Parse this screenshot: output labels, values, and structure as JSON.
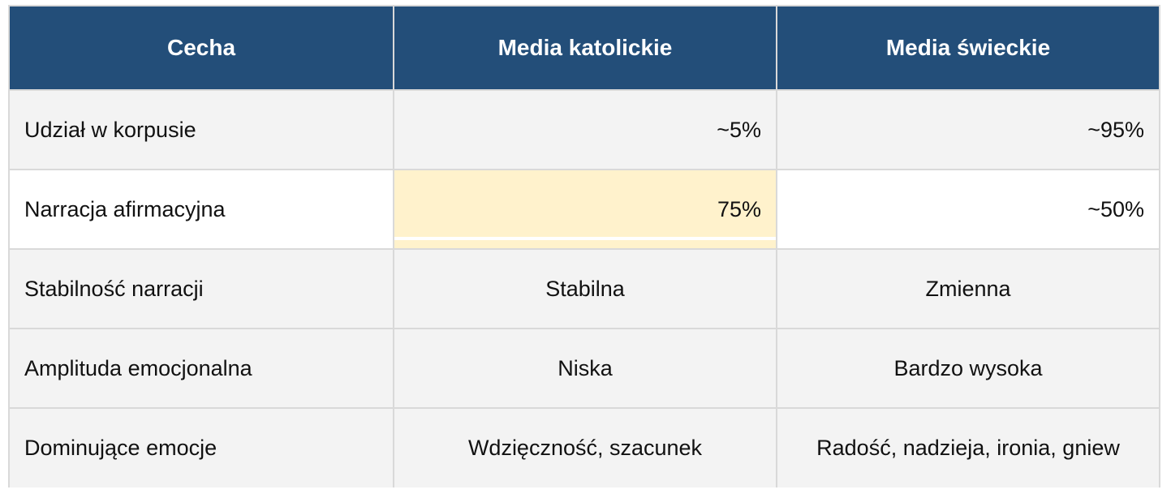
{
  "table": {
    "headers": [
      "Cecha",
      "Media katolickie",
      "Media świeckie"
    ],
    "rows": [
      {
        "feature": "Udział w korpusie",
        "catholic": "~5%",
        "secular": "~95%"
      },
      {
        "feature": "Narracja afirmacyjna",
        "catholic": "75%",
        "secular": "~50%"
      },
      {
        "feature": "Stabilność narracji",
        "catholic": "Stabilna",
        "secular": "Zmienna"
      },
      {
        "feature": "Amplituda emocjonalna",
        "catholic": "Niska",
        "secular": "Bardzo wysoka"
      },
      {
        "feature": "Dominujące emocje",
        "catholic": "Wdzięczność, szacunek",
        "secular": "Radość, nadzieja, ironia, gniew"
      }
    ]
  },
  "colors": {
    "header_bg": "#234e79",
    "header_text": "#ffffff",
    "row_shade": "#f3f3f3",
    "highlight": "#fff2cc",
    "grid": "#d9d9d9"
  }
}
